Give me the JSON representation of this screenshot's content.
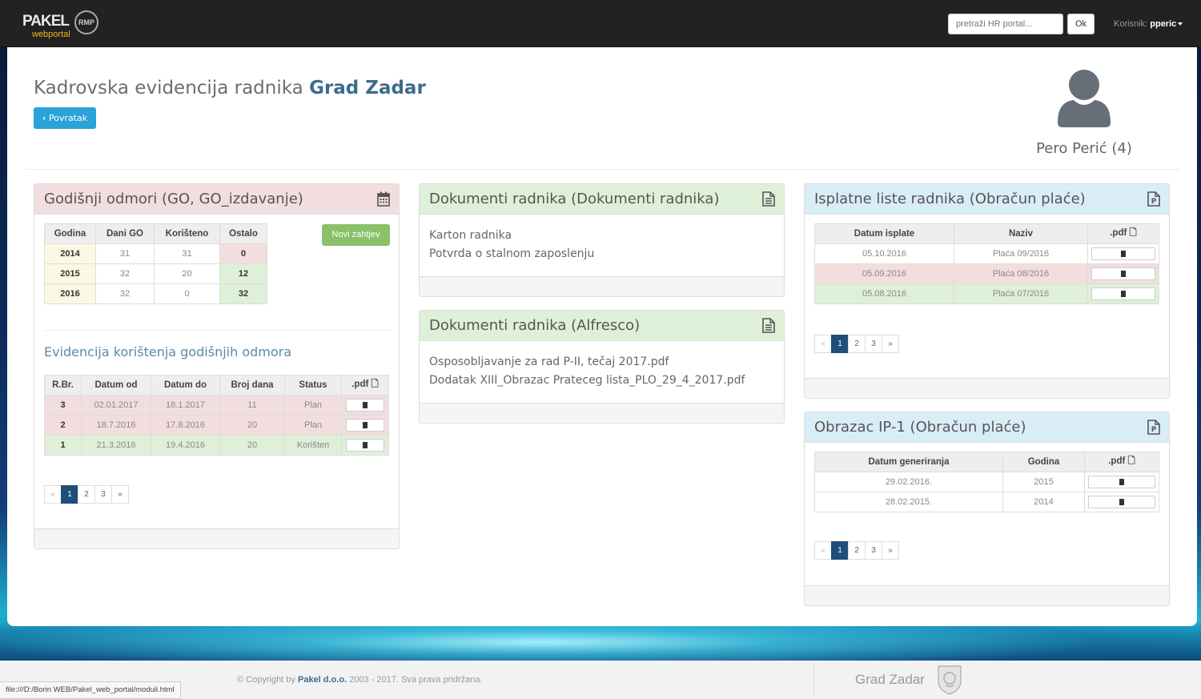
{
  "topbar": {
    "logo_main": "PAKEL",
    "logo_sub": "webportal",
    "logo_badge": "RMP",
    "search_placeholder": "pretraži HR portal...",
    "search_button": "Ok",
    "user_label": "Korisnik:",
    "user_name": "pperic"
  },
  "header": {
    "title_prefix": "Kadrovska evidencija radnika",
    "title_org": "Grad Zadar",
    "back_button": "Povratak",
    "profile_name": "Pero Perić (4)"
  },
  "vacation_panel": {
    "title": "Godišnji odmori (GO, GO_izdavanje)",
    "new_request_button": "Novi zahtjev",
    "summary_headers": [
      "Godina",
      "Dani GO",
      "Korišteno",
      "Ostalo"
    ],
    "summary_rows": [
      {
        "year": "2014",
        "days": "31",
        "used": "31",
        "left": "0",
        "status": "pink"
      },
      {
        "year": "2015",
        "days": "32",
        "used": "20",
        "left": "12",
        "status": "green"
      },
      {
        "year": "2016",
        "days": "32",
        "used": "0",
        "left": "32",
        "status": "green"
      }
    ],
    "usage_title": "Evidencija korištenja godišnjih odmora",
    "usage_headers": [
      "R.Br.",
      "Datum od",
      "Datum do",
      "Broj dana",
      "Status",
      ".pdf"
    ],
    "usage_rows": [
      {
        "no": "3",
        "from": "02.01.2017",
        "to": "18.1.2017",
        "days": "11",
        "status": "Plan",
        "color": "pink"
      },
      {
        "no": "2",
        "from": "18.7.2016",
        "to": "17.8.2016",
        "days": "20",
        "status": "Plan",
        "color": "pink"
      },
      {
        "no": "1",
        "from": "21.3.2016",
        "to": "19.4.2016",
        "days": "20",
        "status": "Korišten",
        "color": "green"
      }
    ],
    "pager": [
      "«",
      "1",
      "2",
      "3",
      "»"
    ]
  },
  "docs_panel": {
    "title": "Dokumenti radnika (Dokumenti radnika)",
    "items": [
      "Karton radnika",
      "Potvrda o stalnom zaposlenju"
    ]
  },
  "alfresco_panel": {
    "title": "Dokumenti radnika (Alfresco)",
    "items": [
      "Osposobljavanje za rad P-II, tečaj 2017.pdf",
      "Dodatak XIII_Obrazac Prateceg lista_PLO_29_4_2017.pdf"
    ]
  },
  "payslip_panel": {
    "title": "Isplatne liste radnika (Obračun plaće)",
    "headers": [
      "Datum isplate",
      "Naziv",
      ".pdf"
    ],
    "rows": [
      {
        "date": "05.10.2016",
        "name": "Plaća 09/2016",
        "color": "none"
      },
      {
        "date": "05.09.2016",
        "name": "Plaća 08/2016",
        "color": "pink"
      },
      {
        "date": "05.08.2016",
        "name": "Plaća 07/2016",
        "color": "green"
      }
    ],
    "pager": [
      "«",
      "1",
      "2",
      "3",
      "»"
    ]
  },
  "ip1_panel": {
    "title": "Obrazac IP-1 (Obračun plaće)",
    "headers": [
      "Datum generiranja",
      "Godina",
      ".pdf"
    ],
    "rows": [
      {
        "date": "29.02.2016.",
        "year": "2015"
      },
      {
        "date": "28.02.2015.",
        "year": "2014"
      }
    ],
    "pager": [
      "«",
      "1",
      "2",
      "3",
      "»"
    ]
  },
  "footer": {
    "copyright_prefix": "© Copyright by",
    "company": "Pakel d.o.o.",
    "copyright_suffix": "2003 - 2017. Sva prava pridržana.",
    "org_logo_text": "Grad Zadar"
  },
  "statusbar": {
    "url": "file:///D:/Borin WEB/Pakel_web_portal/moduli.html"
  },
  "colors": {
    "pink": "#f2dede",
    "green": "#dff0d8",
    "blue": "#d9edf7",
    "accent": "#2aa2da",
    "pager_active": "#1f4e79",
    "button_green": "#8ac16a"
  }
}
